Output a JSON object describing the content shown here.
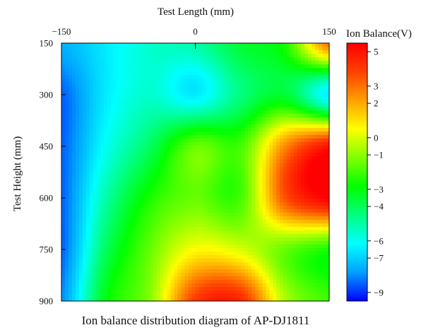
{
  "chart_data": {
    "type": "heatmap",
    "title": "Ion balance distribution diagram of AP-DJ1811",
    "xlabel": "Test Length (mm)",
    "ylabel": "Test Height (mm)",
    "colorbar_label": "Ion Balance(V)",
    "xlim": [
      -150,
      150
    ],
    "ylim": [
      150,
      900
    ],
    "x_ticks": [
      -150,
      0,
      150
    ],
    "x_tick_labels": [
      "−150",
      "0",
      "150"
    ],
    "y_ticks": [
      150,
      300,
      450,
      600,
      750,
      900
    ],
    "y_tick_labels": [
      "150",
      "300",
      "450",
      "600",
      "750",
      "900"
    ],
    "y_axis_inverted": true,
    "x_axis_position": "top",
    "colorbar_range": [
      -9.5,
      5.5
    ],
    "colorbar_ticks": [
      5,
      3,
      2,
      0,
      -1,
      -3,
      -4,
      -6,
      -7,
      -9
    ],
    "colorbar_tick_labels": [
      "5",
      "3",
      "2",
      "0",
      "−1",
      "−3",
      "−4",
      "−6",
      "−7",
      "−9"
    ],
    "colormap": [
      "#0000ff",
      "#00a0ff",
      "#00ffff",
      "#00ff80",
      "#00ff00",
      "#80ff00",
      "#ffff00",
      "#ffa000",
      "#ff4000",
      "#ff0000"
    ],
    "x": [
      -150,
      -100,
      -50,
      0,
      50,
      100,
      150
    ],
    "y": [
      150,
      300,
      450,
      600,
      750,
      900
    ],
    "z": [
      [
        -7.5,
        -6.5,
        -5.5,
        -5,
        -3.5,
        -2.5,
        3
      ],
      [
        -8.5,
        -6.5,
        -5.5,
        -6.5,
        -4.5,
        -3.5,
        -6.5
      ],
      [
        -8.5,
        -6,
        -4,
        -1.5,
        -2,
        2.5,
        5
      ],
      [
        -8.5,
        -5,
        -2.5,
        -1.5,
        -2,
        3.5,
        5.5
      ],
      [
        -8.5,
        -4,
        -1.5,
        0.5,
        0,
        -1.5,
        -2.5
      ],
      [
        -8,
        -3,
        -1,
        4,
        4.5,
        -0.5,
        -2
      ]
    ]
  }
}
